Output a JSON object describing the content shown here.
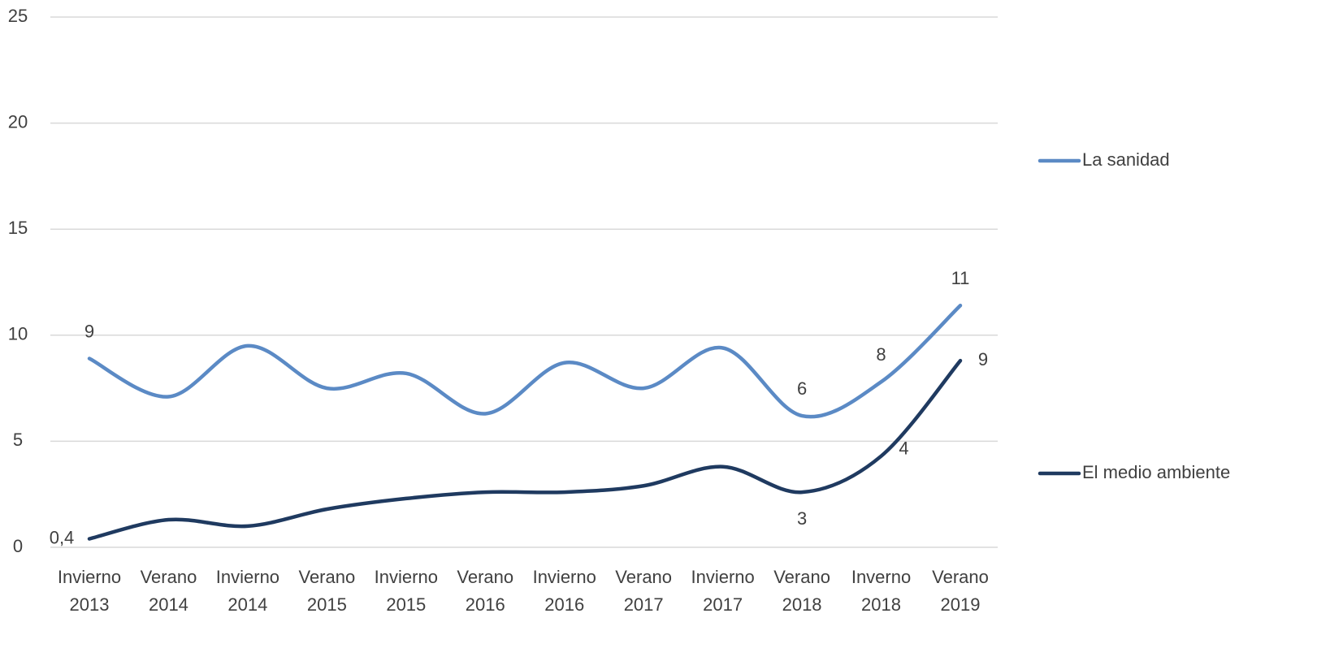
{
  "chart_data": {
    "type": "line",
    "categories": [
      "Invierno 2013",
      "Verano 2014",
      "Invierno 2014",
      "Verano 2015",
      "Invierno 2015",
      "Verano 2016",
      "Invierno 2016",
      "Verano 2017",
      "Invierno 2017",
      "Verano 2018",
      "Inverno 2018",
      "Verano 2019"
    ],
    "series": [
      {
        "name": "La sanidad",
        "color": "#5b8ac5",
        "values": [
          8.9,
          7.1,
          9.5,
          7.5,
          8.2,
          6.3,
          8.7,
          7.5,
          9.4,
          6.2,
          7.8,
          11.4
        ],
        "value_labels": [
          "9",
          null,
          null,
          null,
          null,
          null,
          null,
          null,
          null,
          "6",
          "8",
          "11"
        ]
      },
      {
        "name": "El medio ambiente",
        "color": "#1f3a60",
        "values": [
          0.4,
          1.3,
          1.0,
          1.8,
          2.3,
          2.6,
          2.6,
          2.9,
          3.8,
          2.6,
          4.3,
          8.8
        ],
        "value_labels": [
          "0,4",
          null,
          null,
          null,
          null,
          null,
          null,
          null,
          null,
          "3",
          "4",
          "9"
        ]
      }
    ],
    "ylim": [
      0,
      25
    ],
    "yticks": [
      0,
      5,
      10,
      15,
      20,
      25
    ],
    "grid": true,
    "legend": "right"
  }
}
